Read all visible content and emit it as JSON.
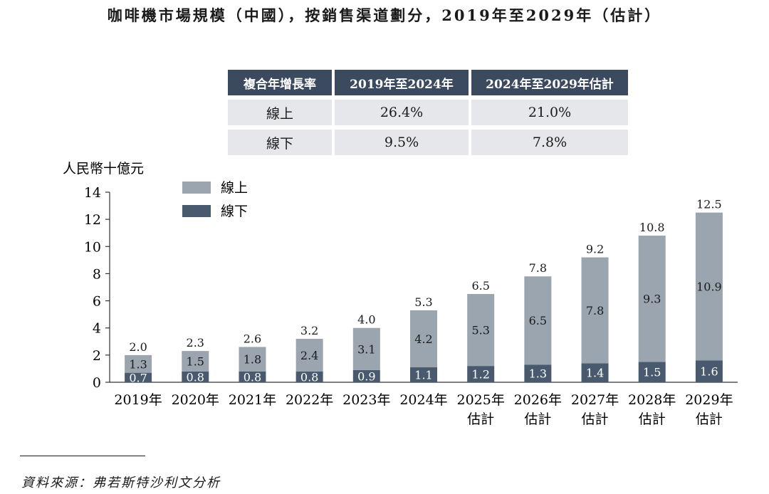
{
  "title": "咖啡機市場規模（中國），按銷售渠道劃分，2019年至2029年（估計）",
  "cagr_table": {
    "headers": [
      "複合年增長率",
      "2019年至2024年",
      "2024年至2029年估計"
    ],
    "rows": [
      {
        "label": "線上",
        "v1": "26.4%",
        "v2": "21.0%"
      },
      {
        "label": "線下",
        "v1": "9.5%",
        "v2": "7.8%"
      }
    ]
  },
  "source": "資料來源：弗若斯特沙利文分析",
  "colors": {
    "online": "#9aa5b0",
    "offline": "#4a5a6e",
    "header_bg": "#3c4a60",
    "cell_bg": "#e5e7ea"
  },
  "chart_data": {
    "type": "bar",
    "stacked": true,
    "title": "咖啡機市場規模（中國），按銷售渠道劃分，2019年至2029年（估計）",
    "ylabel": "人民幣十億元",
    "ylim": [
      0,
      14
    ],
    "yticks": [
      "0",
      "2",
      "4",
      "6",
      "8",
      "10",
      "12",
      "14"
    ],
    "categories": [
      "2019年",
      "2020年",
      "2021年",
      "2022年",
      "2023年",
      "2024年",
      "2025年",
      "2026年",
      "2027年",
      "2028年",
      "2029年"
    ],
    "category_sublabels": [
      "",
      "",
      "",
      "",
      "",
      "",
      "估計",
      "估計",
      "估計",
      "估計",
      "估計"
    ],
    "legend_position": "top-left",
    "series": [
      {
        "name": "線下",
        "values": [
          0.7,
          0.8,
          0.8,
          0.8,
          0.9,
          1.1,
          1.2,
          1.3,
          1.4,
          1.5,
          1.6
        ],
        "labels": [
          "0.7",
          "0.8",
          "0.8",
          "0.8",
          "0.9",
          "1.1",
          "1.2",
          "1.3",
          "1.4",
          "1.5",
          "1.6"
        ]
      },
      {
        "name": "線上",
        "values": [
          1.3,
          1.5,
          1.8,
          2.4,
          3.1,
          4.2,
          5.3,
          6.5,
          7.8,
          9.3,
          10.9
        ],
        "labels": [
          "1.3",
          "1.5",
          "1.8",
          "2.4",
          "3.1",
          "4.2",
          "5.3",
          "6.5",
          "7.8",
          "9.3",
          "10.9"
        ]
      }
    ],
    "totals": [
      2.0,
      2.3,
      2.6,
      3.2,
      4.0,
      5.3,
      6.5,
      7.8,
      9.2,
      10.8,
      12.5
    ],
    "total_labels": [
      "2.0",
      "2.3",
      "2.6",
      "3.2",
      "4.0",
      "5.3",
      "6.5",
      "7.8",
      "9.2",
      "10.8",
      "12.5"
    ]
  }
}
